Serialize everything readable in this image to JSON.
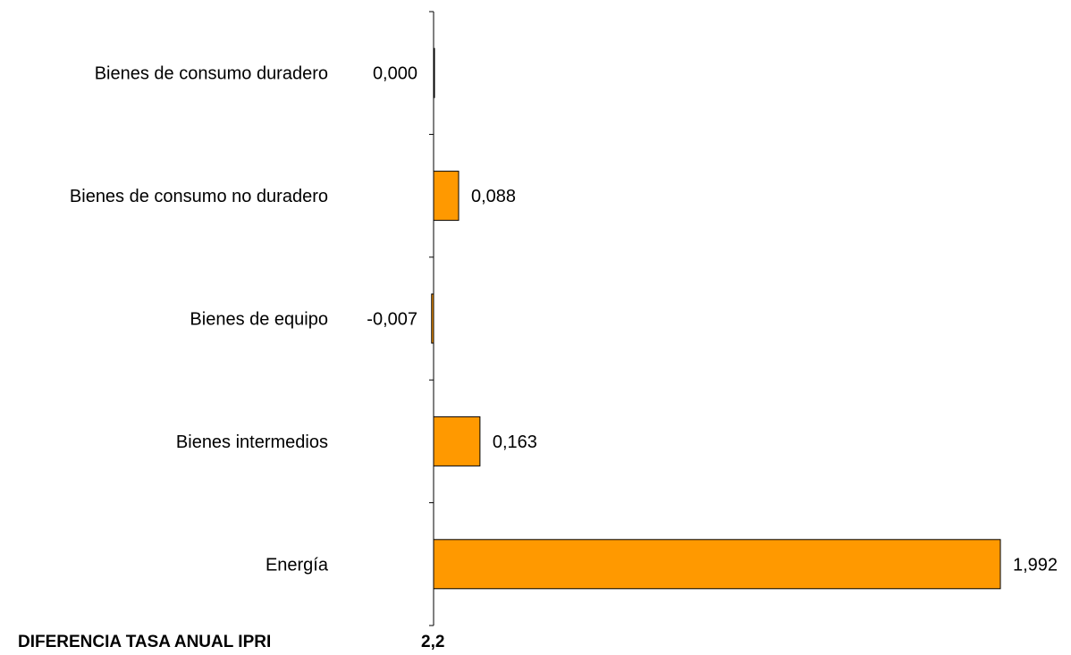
{
  "chart_data": {
    "type": "bar",
    "orientation": "horizontal",
    "categories": [
      "Bienes de consumo duradero",
      "Bienes de consumo no duradero",
      "Bienes de equipo",
      "Bienes intermedios",
      "Energía"
    ],
    "values": [
      0.0,
      0.088,
      -0.007,
      0.163,
      1.992
    ],
    "value_labels": [
      "0,000",
      "0,088",
      "-0,007",
      "0,163",
      "1,992"
    ],
    "bar_color": "#FF9900",
    "bar_edge_color": "#000000",
    "grid": false,
    "legend": "none",
    "title": "",
    "xlabel": "",
    "ylabel": ""
  },
  "footer": {
    "label": "DIFERENCIA TASA ANUAL IPRI",
    "value": "2,2"
  }
}
